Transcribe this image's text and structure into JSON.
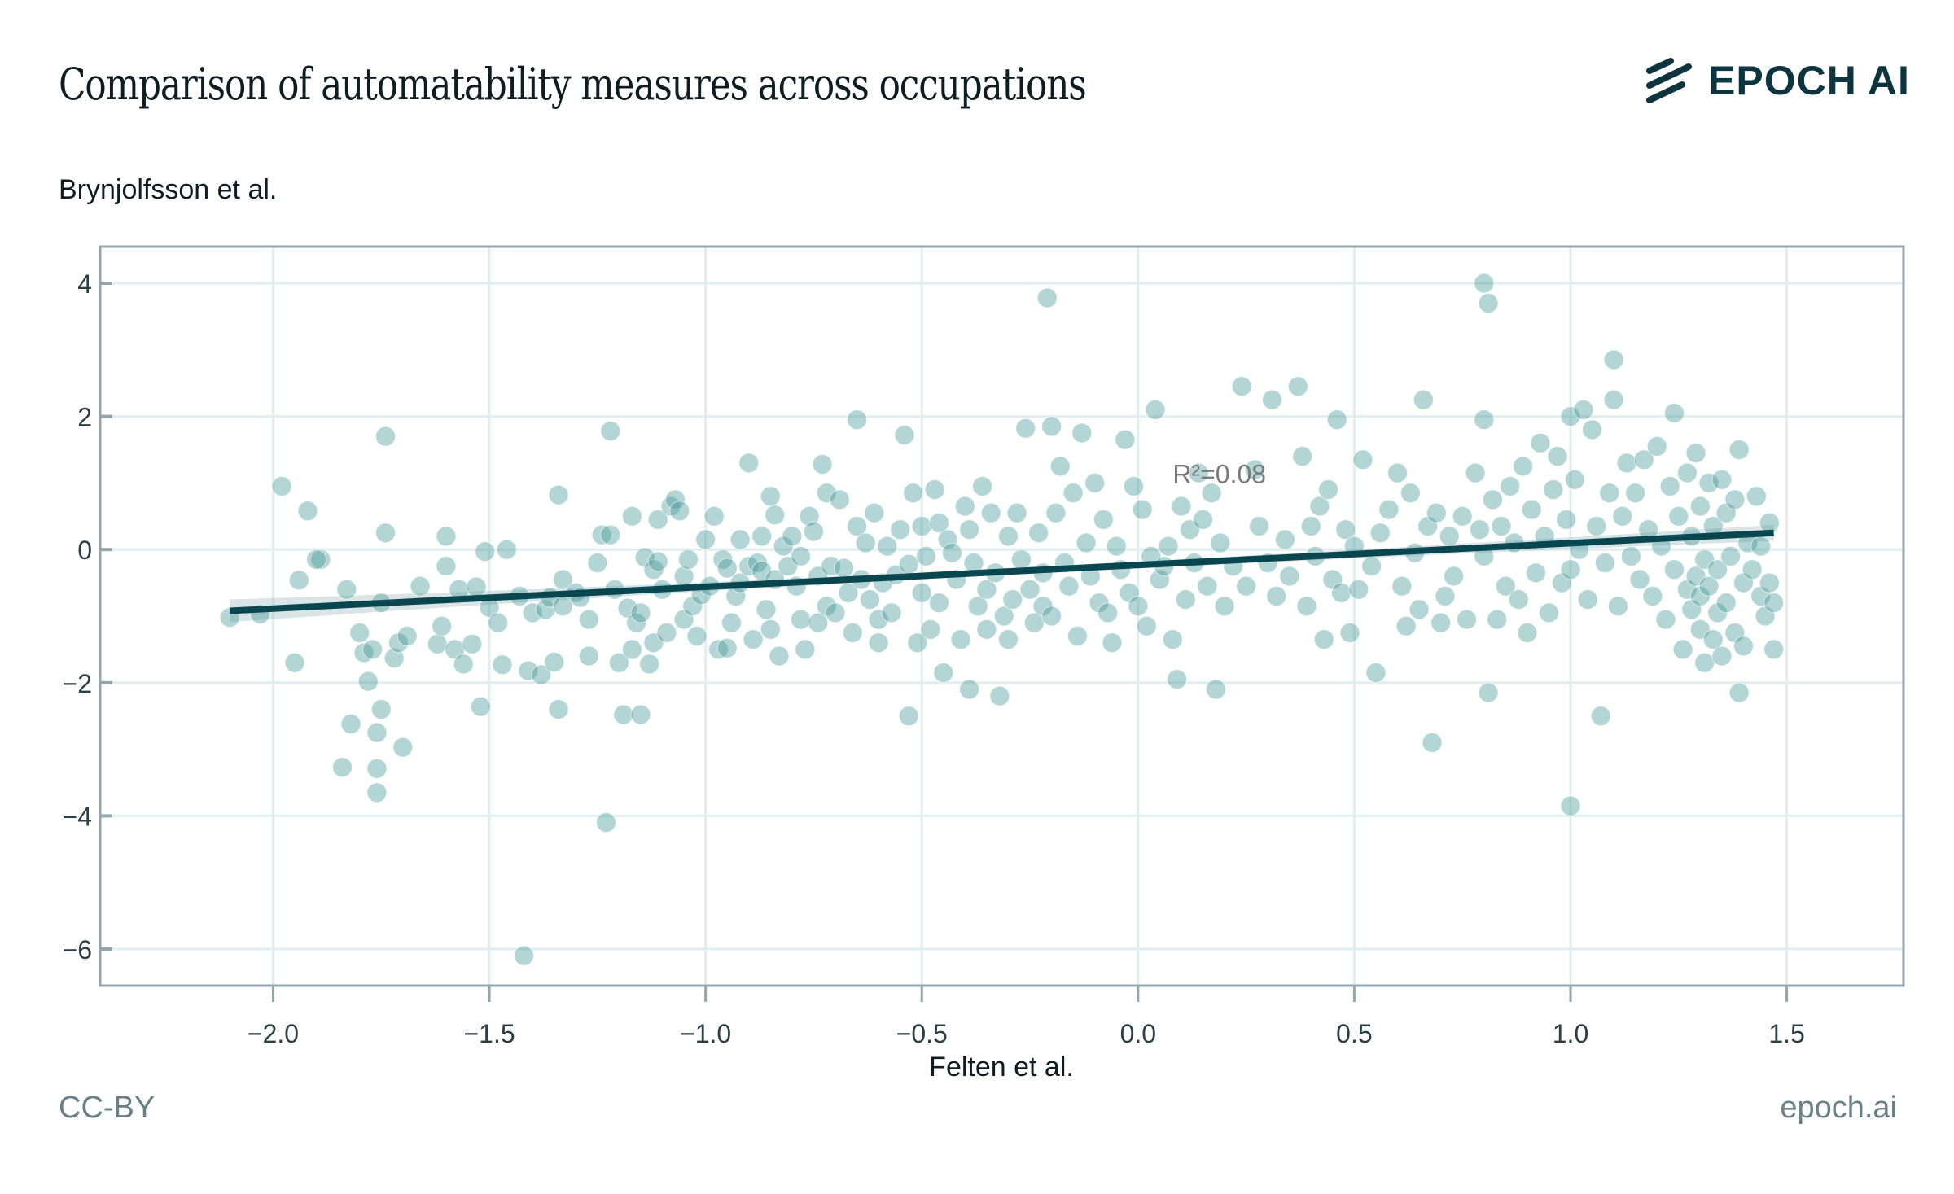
{
  "header": {
    "title": "Comparison of automatability measures across occupations",
    "subtitle": "Brynjolfsson et al.",
    "brand": "EPOCH AI"
  },
  "footer": {
    "license": "CC-BY",
    "site": "epoch.ai"
  },
  "colors": {
    "point": "#4a9c9c",
    "line": "#0a4650",
    "band": "#9fbcc0",
    "grid": "#e0eeef",
    "frame": "#93a6ad",
    "text": "#0e1d21"
  },
  "chart_data": {
    "type": "scatter",
    "title": "Comparison of automatability measures across occupations",
    "xlabel": "Felten et al.",
    "ylabel": "Brynjolfsson et al.",
    "xlim": [
      -2.4,
      1.77
    ],
    "ylim": [
      -6.55,
      4.55
    ],
    "xticks": [
      -2.0,
      -1.5,
      -1.0,
      -0.5,
      0.0,
      0.5,
      1.0,
      1.5
    ],
    "xtick_labels": [
      "−2.0",
      "−1.5",
      "−1.0",
      "−0.5",
      "0.0",
      "0.5",
      "1.0",
      "1.5"
    ],
    "yticks": [
      4,
      2,
      0,
      -2,
      -4,
      -6
    ],
    "ytick_labels": [
      "4",
      "2",
      "0",
      "−2",
      "−4",
      "−6"
    ],
    "grid": true,
    "annotation": "R²=0.08",
    "annotation_pos": [
      0.08,
      1.0
    ],
    "regression": {
      "x": [
        -2.1,
        1.47
      ],
      "y": [
        -0.92,
        0.25
      ],
      "ci_halfwidth_ends": [
        0.17,
        0.12
      ],
      "ci_halfwidth_mid": 0.05
    },
    "points": [
      [
        -2.1,
        -1.02
      ],
      [
        -2.03,
        -0.97
      ],
      [
        -1.98,
        0.95
      ],
      [
        -1.95,
        -1.7
      ],
      [
        -1.94,
        -0.46
      ],
      [
        -1.92,
        0.58
      ],
      [
        -1.89,
        -0.15
      ],
      [
        -1.9,
        -0.15
      ],
      [
        -1.84,
        -3.27
      ],
      [
        -1.82,
        -2.62
      ],
      [
        -1.83,
        -0.6
      ],
      [
        -1.8,
        -1.25
      ],
      [
        -1.79,
        -1.55
      ],
      [
        -1.78,
        -1.98
      ],
      [
        -1.77,
        -1.5
      ],
      [
        -1.76,
        -3.65
      ],
      [
        -1.76,
        -3.29
      ],
      [
        -1.76,
        -2.75
      ],
      [
        -1.75,
        -2.4
      ],
      [
        -1.75,
        -0.8
      ],
      [
        -1.74,
        1.7
      ],
      [
        -1.74,
        0.25
      ],
      [
        -1.72,
        -1.63
      ],
      [
        -1.71,
        -1.4
      ],
      [
        -1.7,
        -2.97
      ],
      [
        -1.69,
        -1.3
      ],
      [
        -1.66,
        -0.55
      ],
      [
        -1.62,
        -1.42
      ],
      [
        -1.61,
        -1.15
      ],
      [
        -1.6,
        0.2
      ],
      [
        -1.6,
        -0.25
      ],
      [
        -1.58,
        -1.5
      ],
      [
        -1.57,
        -0.6
      ],
      [
        -1.56,
        -1.72
      ],
      [
        -1.54,
        -1.42
      ],
      [
        -1.53,
        -0.56
      ],
      [
        -1.52,
        -2.36
      ],
      [
        -1.51,
        -0.03
      ],
      [
        -1.5,
        -0.87
      ],
      [
        -1.48,
        -1.1
      ],
      [
        -1.47,
        -1.73
      ],
      [
        -1.46,
        0.0
      ],
      [
        -1.43,
        -0.7
      ],
      [
        -1.41,
        -1.82
      ],
      [
        -1.4,
        -0.95
      ],
      [
        -1.38,
        -1.88
      ],
      [
        -1.37,
        -0.9
      ],
      [
        -1.36,
        -0.72
      ],
      [
        -1.35,
        -1.69
      ],
      [
        -1.34,
        -2.4
      ],
      [
        -1.34,
        0.82
      ],
      [
        -1.33,
        -0.45
      ],
      [
        -1.33,
        -0.85
      ],
      [
        -1.42,
        -6.1
      ],
      [
        -1.3,
        -0.65
      ],
      [
        -1.29,
        -0.72
      ],
      [
        -1.27,
        -1.05
      ],
      [
        -1.27,
        -1.6
      ],
      [
        -1.25,
        -0.2
      ],
      [
        -1.24,
        0.22
      ],
      [
        -1.22,
        1.78
      ],
      [
        -1.22,
        0.22
      ],
      [
        -1.21,
        -0.6
      ],
      [
        -1.2,
        -1.7
      ],
      [
        -1.19,
        -2.48
      ],
      [
        -1.18,
        -0.88
      ],
      [
        -1.17,
        0.5
      ],
      [
        -1.17,
        -1.5
      ],
      [
        -1.16,
        -1.1
      ],
      [
        -1.15,
        -0.95
      ],
      [
        -1.15,
        -2.48
      ],
      [
        -1.14,
        -0.12
      ],
      [
        -1.13,
        -1.72
      ],
      [
        -1.12,
        -0.3
      ],
      [
        -1.12,
        -1.4
      ],
      [
        -1.11,
        0.45
      ],
      [
        -1.11,
        -0.18
      ],
      [
        -1.23,
        -4.1
      ],
      [
        -1.1,
        -0.6
      ],
      [
        -1.09,
        -1.25
      ],
      [
        -1.08,
        0.65
      ],
      [
        -1.07,
        0.75
      ],
      [
        -1.06,
        0.58
      ],
      [
        -1.05,
        -0.4
      ],
      [
        -1.05,
        -1.05
      ],
      [
        -1.04,
        -0.15
      ],
      [
        -1.03,
        -0.85
      ],
      [
        -1.02,
        -1.3
      ],
      [
        -1.01,
        -0.68
      ],
      [
        -1.0,
        0.15
      ],
      [
        -0.99,
        -0.55
      ],
      [
        -0.98,
        0.5
      ],
      [
        -0.97,
        -1.5
      ],
      [
        -0.96,
        -0.15
      ],
      [
        -0.95,
        -1.48
      ],
      [
        -0.95,
        -0.28
      ],
      [
        -0.94,
        -1.1
      ],
      [
        -0.93,
        -0.7
      ],
      [
        -0.92,
        0.15
      ],
      [
        -0.92,
        -0.5
      ],
      [
        -0.9,
        1.3
      ],
      [
        -0.9,
        -0.25
      ],
      [
        -0.89,
        -1.35
      ],
      [
        -0.88,
        -0.2
      ],
      [
        -0.87,
        0.2
      ],
      [
        -0.87,
        -0.32
      ],
      [
        -0.86,
        -0.9
      ],
      [
        -0.85,
        0.8
      ],
      [
        -0.85,
        -1.2
      ],
      [
        -0.84,
        0.52
      ],
      [
        -0.84,
        -0.45
      ],
      [
        -0.83,
        -1.6
      ],
      [
        -0.82,
        0.05
      ],
      [
        -0.81,
        -0.25
      ],
      [
        -0.8,
        0.2
      ],
      [
        -0.79,
        -0.55
      ],
      [
        -0.78,
        -0.1
      ],
      [
        -0.78,
        -1.05
      ],
      [
        -0.77,
        -1.5
      ],
      [
        -0.76,
        0.5
      ],
      [
        -0.75,
        0.27
      ],
      [
        -0.74,
        -0.4
      ],
      [
        -0.74,
        -1.1
      ],
      [
        -0.73,
        1.28
      ],
      [
        -0.72,
        0.85
      ],
      [
        -0.72,
        -0.85
      ],
      [
        -0.71,
        -0.25
      ],
      [
        -0.7,
        -0.95
      ],
      [
        -0.69,
        0.75
      ],
      [
        -0.68,
        -0.28
      ],
      [
        -0.67,
        -0.65
      ],
      [
        -0.66,
        -1.25
      ],
      [
        -0.65,
        1.95
      ],
      [
        -0.65,
        0.35
      ],
      [
        -0.64,
        -0.45
      ],
      [
        -0.63,
        0.1
      ],
      [
        -0.62,
        -0.75
      ],
      [
        -0.61,
        0.55
      ],
      [
        -0.6,
        -1.05
      ],
      [
        -0.6,
        -1.4
      ],
      [
        -0.59,
        -0.5
      ],
      [
        -0.58,
        0.05
      ],
      [
        -0.57,
        -0.95
      ],
      [
        -0.56,
        -0.38
      ],
      [
        -0.55,
        0.3
      ],
      [
        -0.54,
        1.72
      ],
      [
        -0.53,
        -2.5
      ],
      [
        -0.53,
        -0.22
      ],
      [
        -0.52,
        0.85
      ],
      [
        -0.51,
        -1.4
      ],
      [
        -0.5,
        -0.65
      ],
      [
        -0.5,
        0.35
      ],
      [
        -0.49,
        -0.1
      ],
      [
        -0.48,
        -1.2
      ],
      [
        -0.47,
        0.9
      ],
      [
        -0.46,
        0.4
      ],
      [
        -0.46,
        -0.8
      ],
      [
        -0.45,
        -1.85
      ],
      [
        -0.44,
        0.15
      ],
      [
        -0.43,
        -0.05
      ],
      [
        -0.42,
        -0.45
      ],
      [
        -0.41,
        -1.35
      ],
      [
        -0.4,
        0.65
      ],
      [
        -0.39,
        0.3
      ],
      [
        -0.39,
        -2.1
      ],
      [
        -0.38,
        -0.2
      ],
      [
        -0.37,
        -0.85
      ],
      [
        -0.36,
        0.95
      ],
      [
        -0.35,
        -0.6
      ],
      [
        -0.35,
        -1.2
      ],
      [
        -0.34,
        0.55
      ],
      [
        -0.33,
        -0.35
      ],
      [
        -0.32,
        -2.2
      ],
      [
        -0.31,
        -1.0
      ],
      [
        -0.3,
        0.2
      ],
      [
        -0.3,
        -1.35
      ],
      [
        -0.29,
        -0.75
      ],
      [
        -0.28,
        0.55
      ],
      [
        -0.27,
        -0.15
      ],
      [
        -0.26,
        1.82
      ],
      [
        -0.25,
        -0.6
      ],
      [
        -0.24,
        -1.1
      ],
      [
        -0.23,
        0.25
      ],
      [
        -0.22,
        -0.35
      ],
      [
        -0.22,
        -0.85
      ],
      [
        -0.21,
        3.78
      ],
      [
        -0.2,
        1.85
      ],
      [
        -0.2,
        -1.0
      ],
      [
        -0.19,
        0.55
      ],
      [
        -0.18,
        1.25
      ],
      [
        -0.17,
        -0.2
      ],
      [
        -0.16,
        -0.55
      ],
      [
        -0.15,
        0.85
      ],
      [
        -0.14,
        -1.3
      ],
      [
        -0.13,
        1.75
      ],
      [
        -0.12,
        0.1
      ],
      [
        -0.11,
        -0.4
      ],
      [
        -0.1,
        1.0
      ],
      [
        -0.09,
        -0.8
      ],
      [
        -0.08,
        0.45
      ],
      [
        -0.07,
        -0.95
      ],
      [
        -0.06,
        -1.4
      ],
      [
        -0.05,
        0.05
      ],
      [
        -0.04,
        -0.3
      ],
      [
        -0.03,
        1.65
      ],
      [
        -0.02,
        -0.65
      ],
      [
        -0.01,
        0.95
      ],
      [
        0.0,
        -0.85
      ],
      [
        0.01,
        0.6
      ],
      [
        0.02,
        -1.15
      ],
      [
        0.03,
        -0.1
      ],
      [
        0.04,
        2.1
      ],
      [
        0.05,
        -0.45
      ],
      [
        0.06,
        -0.25
      ],
      [
        0.07,
        0.05
      ],
      [
        0.08,
        -1.35
      ],
      [
        0.09,
        -1.95
      ],
      [
        0.1,
        0.65
      ],
      [
        0.11,
        -0.75
      ],
      [
        0.12,
        0.3
      ],
      [
        0.13,
        -0.2
      ],
      [
        0.14,
        1.15
      ],
      [
        0.15,
        0.45
      ],
      [
        0.16,
        -0.55
      ],
      [
        0.17,
        0.85
      ],
      [
        0.18,
        -2.1
      ],
      [
        0.19,
        0.1
      ],
      [
        0.2,
        -0.85
      ],
      [
        0.22,
        -0.25
      ],
      [
        0.24,
        2.45
      ],
      [
        0.25,
        -0.55
      ],
      [
        0.27,
        1.2
      ],
      [
        0.28,
        0.35
      ],
      [
        0.3,
        -0.2
      ],
      [
        0.31,
        2.25
      ],
      [
        0.32,
        -0.7
      ],
      [
        0.34,
        0.15
      ],
      [
        0.35,
        -0.4
      ],
      [
        0.37,
        2.45
      ],
      [
        0.38,
        1.4
      ],
      [
        0.39,
        -0.85
      ],
      [
        0.4,
        0.35
      ],
      [
        0.41,
        -0.1
      ],
      [
        0.42,
        0.65
      ],
      [
        0.43,
        -1.35
      ],
      [
        0.44,
        0.9
      ],
      [
        0.45,
        -0.45
      ],
      [
        0.46,
        1.95
      ],
      [
        0.47,
        -0.65
      ],
      [
        0.48,
        0.3
      ],
      [
        0.49,
        -1.25
      ],
      [
        0.5,
        0.05
      ],
      [
        0.51,
        -0.6
      ],
      [
        0.52,
        1.35
      ],
      [
        0.54,
        -0.25
      ],
      [
        0.55,
        -1.85
      ],
      [
        0.56,
        0.25
      ],
      [
        0.58,
        0.6
      ],
      [
        0.6,
        1.15
      ],
      [
        0.61,
        -0.55
      ],
      [
        0.62,
        -1.15
      ],
      [
        0.63,
        0.85
      ],
      [
        0.64,
        -0.05
      ],
      [
        0.65,
        -0.9
      ],
      [
        0.66,
        2.25
      ],
      [
        0.67,
        0.35
      ],
      [
        0.68,
        -2.9
      ],
      [
        0.69,
        0.55
      ],
      [
        0.7,
        -1.1
      ],
      [
        0.71,
        -0.7
      ],
      [
        0.72,
        0.2
      ],
      [
        0.73,
        -0.4
      ],
      [
        0.75,
        0.5
      ],
      [
        0.76,
        -1.05
      ],
      [
        0.78,
        1.15
      ],
      [
        0.79,
        0.3
      ],
      [
        0.8,
        4.0
      ],
      [
        0.8,
        1.95
      ],
      [
        0.8,
        -0.1
      ],
      [
        0.81,
        3.7
      ],
      [
        0.81,
        -2.15
      ],
      [
        0.82,
        0.75
      ],
      [
        0.83,
        -1.05
      ],
      [
        0.84,
        0.35
      ],
      [
        0.85,
        -0.55
      ],
      [
        0.86,
        0.95
      ],
      [
        0.87,
        0.1
      ],
      [
        0.88,
        -0.75
      ],
      [
        0.89,
        1.25
      ],
      [
        0.9,
        -1.25
      ],
      [
        0.91,
        0.6
      ],
      [
        0.92,
        -0.35
      ],
      [
        0.93,
        1.6
      ],
      [
        0.94,
        0.2
      ],
      [
        0.95,
        -0.95
      ],
      [
        0.96,
        0.9
      ],
      [
        0.97,
        1.4
      ],
      [
        0.98,
        -0.5
      ],
      [
        0.99,
        0.45
      ],
      [
        1.0,
        2.0
      ],
      [
        1.0,
        -3.85
      ],
      [
        1.0,
        -0.3
      ],
      [
        1.01,
        1.05
      ],
      [
        1.02,
        0.0
      ],
      [
        1.03,
        2.1
      ],
      [
        1.04,
        -0.75
      ],
      [
        1.05,
        1.8
      ],
      [
        1.06,
        0.35
      ],
      [
        1.07,
        -2.5
      ],
      [
        1.08,
        -0.2
      ],
      [
        1.09,
        0.85
      ],
      [
        1.1,
        2.85
      ],
      [
        1.1,
        2.25
      ],
      [
        1.11,
        -0.85
      ],
      [
        1.12,
        0.5
      ],
      [
        1.13,
        1.3
      ],
      [
        1.14,
        -0.1
      ],
      [
        1.15,
        0.85
      ],
      [
        1.16,
        -0.45
      ],
      [
        1.17,
        1.35
      ],
      [
        1.18,
        0.3
      ],
      [
        1.19,
        -0.7
      ],
      [
        1.2,
        1.55
      ],
      [
        1.21,
        0.05
      ],
      [
        1.22,
        -1.05
      ],
      [
        1.23,
        0.95
      ],
      [
        1.24,
        2.05
      ],
      [
        1.24,
        -0.3
      ],
      [
        1.25,
        0.5
      ],
      [
        1.26,
        -1.5
      ],
      [
        1.27,
        1.15
      ],
      [
        1.27,
        -0.6
      ],
      [
        1.28,
        0.2
      ],
      [
        1.28,
        -0.9
      ],
      [
        1.29,
        1.45
      ],
      [
        1.29,
        -0.4
      ],
      [
        1.3,
        -1.2
      ],
      [
        1.3,
        0.65
      ],
      [
        1.3,
        -0.7
      ],
      [
        1.31,
        -1.7
      ],
      [
        1.31,
        -0.15
      ],
      [
        1.32,
        1.0
      ],
      [
        1.32,
        -0.55
      ],
      [
        1.33,
        -1.35
      ],
      [
        1.33,
        0.35
      ],
      [
        1.34,
        -0.95
      ],
      [
        1.34,
        -0.3
      ],
      [
        1.35,
        1.05
      ],
      [
        1.35,
        -1.6
      ],
      [
        1.36,
        0.55
      ],
      [
        1.36,
        -0.8
      ],
      [
        1.37,
        -0.1
      ],
      [
        1.38,
        -1.25
      ],
      [
        1.38,
        0.75
      ],
      [
        1.39,
        1.5
      ],
      [
        1.39,
        -2.15
      ],
      [
        1.4,
        -0.5
      ],
      [
        1.4,
        -1.45
      ],
      [
        1.41,
        0.1
      ],
      [
        1.42,
        -0.3
      ],
      [
        1.43,
        0.8
      ],
      [
        1.44,
        -0.7
      ],
      [
        1.45,
        -1.0
      ],
      [
        1.46,
        0.4
      ],
      [
        1.47,
        -0.8
      ],
      [
        1.47,
        -1.5
      ],
      [
        1.46,
        -0.5
      ],
      [
        1.44,
        0.05
      ]
    ]
  }
}
